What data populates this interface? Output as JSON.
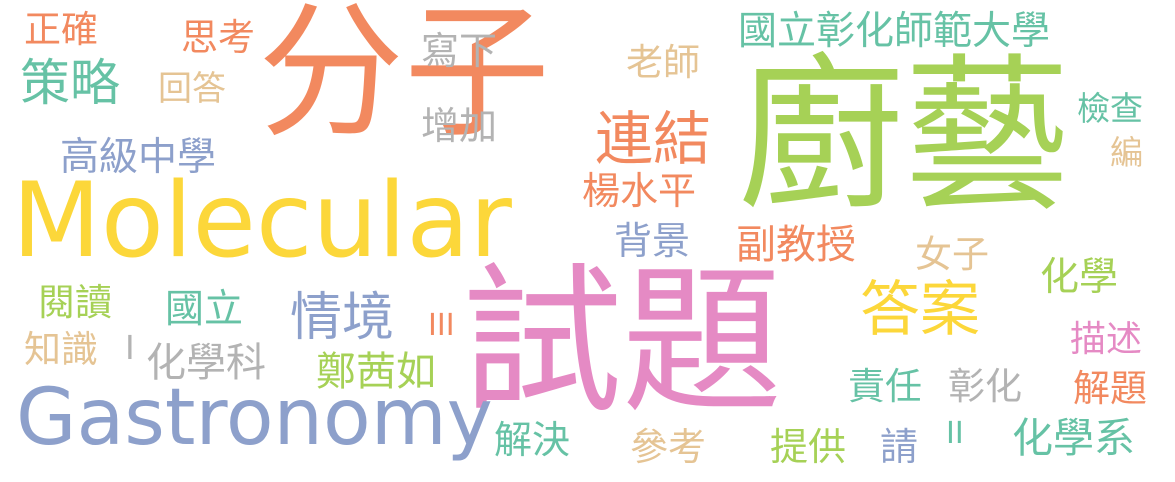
{
  "colors": {
    "background": "#ffffff",
    "orange": "#f2895f",
    "green": "#a6d156",
    "yellow": "#fcd73a",
    "blue": "#8da0cb",
    "pink": "#e58ac4",
    "teal": "#66c2a5",
    "tan": "#e5c494",
    "gray": "#b3b3b3"
  },
  "words": {
    "fenzi": "分子",
    "chuyi": "廚藝",
    "molecular": "Molecular",
    "shiti": "試題",
    "gastronomy": "Gastronomy",
    "celue": "策略",
    "gaojizhongxue": "高級中學",
    "lianjie": "連結",
    "daan": "答案",
    "qingjing": "情境",
    "guolizhanghua": "國立彰化師範大學",
    "zhengque": "正確",
    "sikao": "思考",
    "huida": "回答",
    "xiexia": "寫下",
    "laoshi": "老師",
    "zengjia": "增加",
    "jiancha": "檢查",
    "bian": "編",
    "yangshuiping": "楊水平",
    "beijing": "背景",
    "fujiaoshou": "副教授",
    "nuzi": "女子",
    "huaxue": "化學",
    "yuedu": "閱讀",
    "guoli": "國立",
    "zhishi": "知識",
    "huaxueke": "化學科",
    "zhengqianru": "鄭茜如",
    "miaoshu": "描述",
    "zeren": "責任",
    "zhanghua": "彰化",
    "jieti": "解題",
    "jiejue": "解決",
    "cankao": "參考",
    "tigong": "提供",
    "qing": "請",
    "huaxuexi": "化學系",
    "roman3": "III",
    "roman2": "II",
    "roman1": "I"
  }
}
